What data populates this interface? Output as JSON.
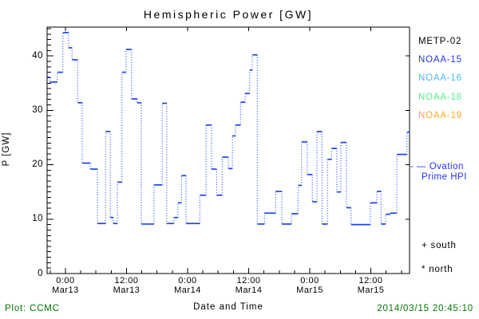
{
  "title": "Hemispheric Power [GW]",
  "footer": {
    "left": "Plot: CCMC",
    "right": "2014/03/15 20:45:10",
    "color": "#007700"
  },
  "legend": {
    "satellites": [
      {
        "label": "METP-02",
        "color": "#000000"
      },
      {
        "label": "NOAA-15",
        "color": "#2233ee"
      },
      {
        "label": "NOAA-16",
        "color": "#44bbff"
      },
      {
        "label": "NOAA-18",
        "color": "#55ee88"
      },
      {
        "label": "NOAA-19",
        "color": "#ffaa22"
      }
    ],
    "ovation": {
      "line_sample": "- —",
      "label_line1": "Ovation",
      "label_line2": "Prime HPI",
      "color": "#2233ee"
    },
    "markers": [
      {
        "symbol": "+",
        "label": "south"
      },
      {
        "symbol": "*",
        "label": "north"
      }
    ]
  },
  "chart_data": {
    "type": "line",
    "subtype": "steps",
    "title": "Hemispheric Power [GW]",
    "xlabel": "Date and Time",
    "ylabel": "P [GW]",
    "ylim": [
      0,
      45.3
    ],
    "y_major_ticks": [
      0,
      10,
      20,
      30,
      40
    ],
    "y_minor_step_gw": 1,
    "grid": false,
    "legend_position": "right",
    "x_total_hours": 71.2,
    "x_minor_step_hours": 3,
    "x_major_ticks": [
      {
        "hour": 3.6,
        "time": "0:00",
        "date": "Mar13"
      },
      {
        "hour": 15.6,
        "time": "12:00",
        "date": "Mar13"
      },
      {
        "hour": 27.6,
        "time": "0:00",
        "date": "Mar14"
      },
      {
        "hour": 39.6,
        "time": "12:00",
        "date": "Mar14"
      },
      {
        "hour": 51.6,
        "time": "0:00",
        "date": "Mar15"
      },
      {
        "hour": 63.6,
        "time": "12:00",
        "date": "Mar15"
      }
    ],
    "series": [
      {
        "name": "Ovation Prime HPI",
        "color": "#1c44ee",
        "steps_hours_gw": [
          [
            0.0,
            0.5,
            36.1
          ],
          [
            0.5,
            2.0,
            35.2
          ],
          [
            2.0,
            3.1,
            37.0
          ],
          [
            3.1,
            4.2,
            44.3
          ],
          [
            4.2,
            4.9,
            41.5
          ],
          [
            4.9,
            6.0,
            39.3
          ],
          [
            6.0,
            6.9,
            31.4
          ],
          [
            6.9,
            8.5,
            20.3
          ],
          [
            8.5,
            9.9,
            19.2
          ],
          [
            9.9,
            11.5,
            9.2
          ],
          [
            11.5,
            12.4,
            26.1
          ],
          [
            12.4,
            13.0,
            10.3
          ],
          [
            13.0,
            13.8,
            9.2
          ],
          [
            13.8,
            14.7,
            16.8
          ],
          [
            14.7,
            15.5,
            37.0
          ],
          [
            15.5,
            16.6,
            41.2
          ],
          [
            16.6,
            17.7,
            32.1
          ],
          [
            17.7,
            18.5,
            31.4
          ],
          [
            18.5,
            21.0,
            9.1
          ],
          [
            21.0,
            22.6,
            16.3
          ],
          [
            22.6,
            23.5,
            31.3
          ],
          [
            23.5,
            24.9,
            9.2
          ],
          [
            24.9,
            25.7,
            10.3
          ],
          [
            25.7,
            26.4,
            13.0
          ],
          [
            26.4,
            27.3,
            18.0
          ],
          [
            27.3,
            30.0,
            9.2
          ],
          [
            30.0,
            31.2,
            14.4
          ],
          [
            31.2,
            32.3,
            27.3
          ],
          [
            32.3,
            33.3,
            19.2
          ],
          [
            33.3,
            34.4,
            14.4
          ],
          [
            34.4,
            35.6,
            21.4
          ],
          [
            35.6,
            36.4,
            19.3
          ],
          [
            36.4,
            37.0,
            25.3
          ],
          [
            37.0,
            38.0,
            27.3
          ],
          [
            38.0,
            38.9,
            31.5
          ],
          [
            38.9,
            39.8,
            33.1
          ],
          [
            39.8,
            40.3,
            37.4
          ],
          [
            40.3,
            41.3,
            40.2
          ],
          [
            41.3,
            42.7,
            9.1
          ],
          [
            42.7,
            44.9,
            11.1
          ],
          [
            44.9,
            46.1,
            15.1
          ],
          [
            46.1,
            48.0,
            9.1
          ],
          [
            48.0,
            49.3,
            11.0
          ],
          [
            49.3,
            50.0,
            16.2
          ],
          [
            50.0,
            51.1,
            24.2
          ],
          [
            51.1,
            52.1,
            18.2
          ],
          [
            52.1,
            53.0,
            13.2
          ],
          [
            53.0,
            54.0,
            26.1
          ],
          [
            54.0,
            55.1,
            9.1
          ],
          [
            55.1,
            55.9,
            21.0
          ],
          [
            55.9,
            56.9,
            23.0
          ],
          [
            56.9,
            57.7,
            15.0
          ],
          [
            57.7,
            58.8,
            24.1
          ],
          [
            58.8,
            59.7,
            12.1
          ],
          [
            59.7,
            63.5,
            9.0
          ],
          [
            63.5,
            64.8,
            13.0
          ],
          [
            64.8,
            65.6,
            15.1
          ],
          [
            65.6,
            66.5,
            9.1
          ],
          [
            66.5,
            67.4,
            10.9
          ],
          [
            67.4,
            68.7,
            11.1
          ],
          [
            68.7,
            70.7,
            21.9
          ],
          [
            70.7,
            71.2,
            26.0
          ]
        ]
      }
    ]
  }
}
